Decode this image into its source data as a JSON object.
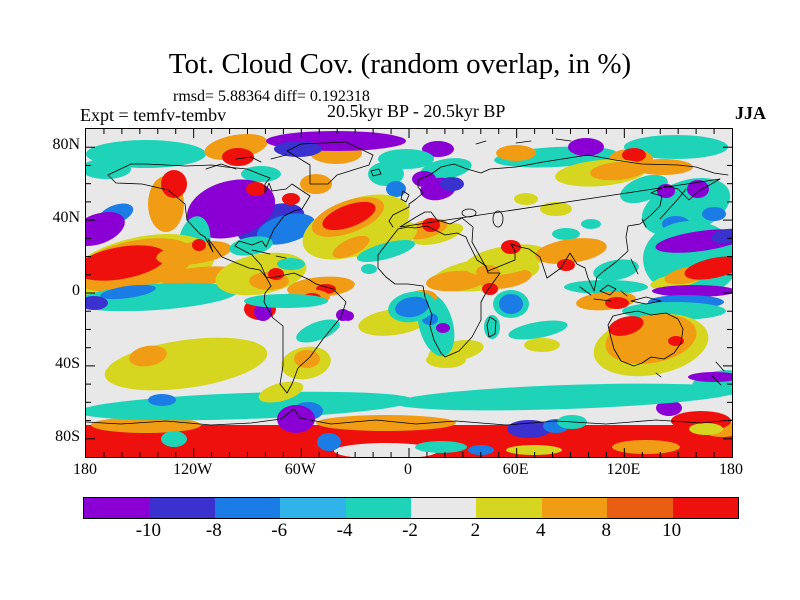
{
  "header": {
    "title": "Tot. Cloud Cov. (random overlap, in %)",
    "stats_line": "rmsd= 5.88364 diff= 0.192318",
    "period_line": "20.5kyr BP - 20.5kyr BP",
    "experiment_label": "Expt = temfv-tembv",
    "season_label": "JJA"
  },
  "chart_data": {
    "type": "heatmap",
    "title": "Tot. Cloud Cov. (random overlap, in %)",
    "subtitle": "rmsd= 5.88364 diff= 0.192318",
    "experiment": "Expt = temfv-tembv",
    "comparison": "20.5kyr BP - 20.5kyr BP",
    "season": "JJA",
    "units": "%",
    "rmsd": 5.88364,
    "diff": 0.192318,
    "projection": "global latitude-longitude map, 180W to 180E, 90S to 90N",
    "x_axis": {
      "tick_labels": [
        "180",
        "120W",
        "60W",
        "0",
        "60E",
        "120E",
        "180"
      ],
      "minor_tick_deg": 10,
      "major_tick_deg": 60
    },
    "y_axis": {
      "tick_labels": [
        "80N",
        "40N",
        "0",
        "40S",
        "80S"
      ],
      "minor_tick_deg": 10,
      "major_tick_deg": 40
    },
    "colorbar": {
      "boundary_labels": [
        "-10",
        "-8",
        "-6",
        "-4",
        "-2",
        "2",
        "4",
        "8",
        "10"
      ],
      "colors": [
        "#8a00d4",
        "#3a31cf",
        "#1b7ce6",
        "#2fb3e8",
        "#1fd3b9",
        "#e8e8e8",
        "#d6d621",
        "#f09c14",
        "#e95e12",
        "#ee100c"
      ],
      "color_meanings": [
        "< -10",
        "-10 to -8",
        "-8 to -6",
        "-6 to -4",
        "-4 to -2",
        "-2 to 2",
        "2 to 4",
        "4 to 8",
        "8 to 10",
        "> 10"
      ],
      "background_color": "#e8e8e8"
    },
    "field_features": [
      [
        "r",
        0,
        296,
        646,
        32,
        0,
        9
      ],
      [
        "e",
        60,
        296,
        55,
        8,
        0,
        7
      ],
      [
        "e",
        300,
        294,
        70,
        8,
        0,
        7
      ],
      [
        "e",
        560,
        318,
        34,
        7,
        0,
        7
      ],
      [
        "e",
        636,
        300,
        20,
        8,
        0,
        7
      ],
      [
        "e",
        615,
        292,
        30,
        10,
        0,
        9
      ],
      [
        "e",
        300,
        322,
        52,
        8,
        0,
        5
      ],
      [
        "e",
        355,
        318,
        26,
        6,
        0,
        4
      ],
      [
        "e",
        395,
        321,
        13,
        5,
        0,
        2
      ],
      [
        "e",
        448,
        321,
        28,
        5,
        0,
        6
      ],
      [
        "e",
        88,
        310,
        13,
        8,
        0,
        4
      ],
      [
        "e",
        243,
        313,
        12,
        9,
        0,
        2
      ],
      [
        "e",
        443,
        300,
        22,
        9,
        0,
        1
      ],
      [
        "e",
        470,
        297,
        13,
        7,
        0,
        2
      ],
      [
        "e",
        486,
        293,
        15,
        7,
        0,
        4
      ],
      [
        "e",
        583,
        279,
        13,
        8,
        0,
        0
      ],
      [
        "e",
        620,
        300,
        17,
        6,
        0,
        6
      ],
      [
        "e",
        160,
        277,
        168,
        13,
        -2,
        4
      ],
      [
        "e",
        480,
        268,
        172,
        12,
        -2,
        4
      ],
      [
        "e",
        76,
        271,
        14,
        6,
        0,
        2
      ],
      [
        "e",
        610,
        263,
        30,
        8,
        -5,
        4
      ],
      [
        "e",
        222,
        282,
        15,
        9,
        0,
        2
      ],
      [
        "e",
        210,
        290,
        19,
        14,
        0,
        0
      ],
      [
        "e",
        632,
        252,
        26,
        10,
        -10,
        4
      ],
      [
        "e",
        628,
        248,
        26,
        5,
        0,
        0
      ],
      [
        "e",
        100,
        235,
        82,
        24,
        -8,
        6
      ],
      [
        "e",
        62,
        227,
        19,
        10,
        -10,
        7
      ],
      [
        "e",
        220,
        234,
        25,
        16,
        -10,
        6
      ],
      [
        "e",
        221,
        230,
        13,
        9,
        0,
        7
      ],
      [
        "e",
        195,
        263,
        23,
        9,
        -15,
        6
      ],
      [
        "e",
        370,
        222,
        28,
        10,
        -10,
        6
      ],
      [
        "e",
        360,
        231,
        20,
        8,
        0,
        6
      ],
      [
        "e",
        308,
        193,
        36,
        13,
        -8,
        6
      ],
      [
        "e",
        350,
        196,
        17,
        32,
        -15,
        4
      ],
      [
        "e",
        344,
        190,
        8,
        6,
        0,
        2
      ],
      [
        "e",
        357,
        199,
        7,
        5,
        0,
        0
      ],
      [
        "e",
        262,
        187,
        6,
        5,
        0,
        0
      ],
      [
        "e",
        406,
        198,
        8,
        12,
        0,
        4
      ],
      [
        "e",
        452,
        201,
        30,
        8,
        -10,
        4
      ],
      [
        "e",
        456,
        216,
        18,
        7,
        0,
        6
      ],
      [
        "e",
        232,
        202,
        23,
        9,
        -20,
        4
      ],
      [
        "e",
        257,
        186,
        7,
        6,
        0,
        0
      ],
      [
        "e",
        235,
        158,
        34,
        10,
        -5,
        7
      ],
      [
        "e",
        240,
        160,
        10,
        5,
        0,
        9
      ],
      [
        "e",
        222,
        168,
        22,
        8,
        0,
        7
      ],
      [
        "e",
        226,
        169,
        9,
        5,
        0,
        9
      ],
      [
        "e",
        174,
        180,
        16,
        11,
        0,
        9
      ],
      [
        "e",
        177,
        183,
        9,
        9,
        0,
        0
      ],
      [
        "e",
        200,
        172,
        42,
        7,
        0,
        4
      ],
      [
        "e",
        337,
        168,
        14,
        7,
        0,
        7
      ],
      [
        "e",
        400,
        145,
        54,
        16,
        -8,
        6
      ],
      [
        "e",
        370,
        152,
        30,
        10,
        -5,
        7
      ],
      [
        "e",
        420,
        150,
        26,
        9,
        -10,
        7
      ],
      [
        "e",
        404,
        160,
        8,
        6,
        0,
        9
      ],
      [
        "e",
        326,
        178,
        24,
        15,
        -10,
        4
      ],
      [
        "e",
        326,
        178,
        17,
        10,
        -10,
        2
      ],
      [
        "e",
        425,
        175,
        18,
        14,
        0,
        4
      ],
      [
        "e",
        425,
        175,
        12,
        10,
        0,
        2
      ],
      [
        "e",
        283,
        140,
        8,
        5,
        0,
        4
      ],
      [
        "e",
        296,
        120,
        7,
        5,
        0,
        0
      ],
      [
        "e",
        352,
        105,
        26,
        9,
        -15,
        6
      ],
      [
        "e",
        340,
        100,
        22,
        9,
        -15,
        7
      ],
      [
        "e",
        345,
        96,
        9,
        7,
        0,
        9
      ],
      [
        "e",
        360,
        40,
        26,
        10,
        -10,
        4
      ],
      [
        "e",
        352,
        60,
        18,
        11,
        -10,
        0
      ],
      [
        "e",
        338,
        50,
        12,
        8,
        0,
        0
      ],
      [
        "e",
        366,
        55,
        12,
        7,
        0,
        1
      ],
      [
        "e",
        470,
        28,
        62,
        10,
        -3,
        4
      ],
      [
        "e",
        590,
        18,
        52,
        12,
        0,
        4
      ],
      [
        "e",
        558,
        60,
        25,
        12,
        -20,
        4
      ],
      [
        "e",
        500,
        18,
        18,
        9,
        0,
        0
      ],
      [
        "e",
        352,
        20,
        16,
        8,
        0,
        0
      ],
      [
        "e",
        430,
        24,
        20,
        8,
        0,
        7
      ],
      [
        "e",
        545,
        30,
        22,
        10,
        0,
        7
      ],
      [
        "e",
        548,
        26,
        12,
        7,
        0,
        9
      ],
      [
        "e",
        515,
        44,
        46,
        13,
        -5,
        6
      ],
      [
        "e",
        532,
        42,
        28,
        9,
        -5,
        7
      ],
      [
        "e",
        577,
        38,
        30,
        8,
        0,
        7
      ],
      [
        "e",
        470,
        80,
        16,
        7,
        0,
        6
      ],
      [
        "e",
        440,
        70,
        12,
        6,
        0,
        6
      ],
      [
        "e",
        480,
        105,
        14,
        6,
        0,
        4
      ],
      [
        "e",
        505,
        95,
        10,
        5,
        0,
        4
      ],
      [
        "e",
        420,
        131,
        42,
        14,
        -10,
        6
      ],
      [
        "e",
        402,
        143,
        12,
        7,
        0,
        7
      ],
      [
        "e",
        485,
        122,
        36,
        12,
        -8,
        7
      ],
      [
        "e",
        425,
        118,
        10,
        7,
        0,
        9
      ],
      [
        "e",
        480,
        136,
        9,
        6,
        0,
        9
      ],
      [
        "e",
        530,
        141,
        23,
        10,
        -10,
        4
      ],
      [
        "e",
        600,
        78,
        46,
        26,
        -20,
        4
      ],
      [
        "e",
        590,
        95,
        14,
        8,
        0,
        2
      ],
      [
        "e",
        628,
        85,
        12,
        7,
        0,
        2
      ],
      [
        "e",
        612,
        60,
        11,
        9,
        0,
        0
      ],
      [
        "e",
        580,
        62,
        9,
        7,
        0,
        0
      ],
      [
        "e",
        605,
        130,
        48,
        38,
        0,
        4
      ],
      [
        "e",
        615,
        112,
        46,
        10,
        -8,
        0
      ],
      [
        "e",
        641,
        107,
        16,
        7,
        -8,
        1
      ],
      [
        "e",
        590,
        152,
        26,
        7,
        -10,
        6
      ],
      [
        "e",
        602,
        146,
        24,
        8,
        -12,
        7
      ],
      [
        "e",
        628,
        139,
        30,
        10,
        -12,
        9
      ],
      [
        "e",
        608,
        162,
        42,
        6,
        0,
        0
      ],
      [
        "e",
        600,
        173,
        38,
        7,
        0,
        2
      ],
      [
        "e",
        588,
        182,
        52,
        9,
        0,
        4
      ],
      [
        "e",
        520,
        158,
        42,
        7,
        0,
        4
      ],
      [
        "e",
        565,
        216,
        58,
        30,
        -10,
        6
      ],
      [
        "e",
        565,
        210,
        46,
        24,
        -10,
        7
      ],
      [
        "e",
        540,
        197,
        18,
        9,
        -15,
        9
      ],
      [
        "e",
        590,
        212,
        8,
        5,
        0,
        9
      ],
      [
        "e",
        520,
        172,
        30,
        9,
        -5,
        7
      ],
      [
        "e",
        531,
        174,
        12,
        6,
        0,
        9
      ],
      [
        "e",
        60,
        25,
        60,
        14,
        0,
        4
      ],
      [
        "e",
        20,
        40,
        25,
        10,
        0,
        4
      ],
      [
        "e",
        320,
        30,
        28,
        10,
        0,
        4
      ],
      [
        "e",
        175,
        45,
        20,
        8,
        0,
        4
      ],
      [
        "e",
        150,
        18,
        32,
        12,
        -10,
        7
      ],
      [
        "e",
        152,
        28,
        16,
        9,
        0,
        9
      ],
      [
        "e",
        250,
        24,
        26,
        11,
        0,
        7
      ],
      [
        "e",
        250,
        12,
        70,
        10,
        0,
        0
      ],
      [
        "e",
        212,
        20,
        24,
        8,
        0,
        1
      ],
      [
        "e",
        230,
        55,
        16,
        10,
        0,
        7
      ],
      [
        "e",
        80,
        75,
        18,
        28,
        0,
        7
      ],
      [
        "e",
        88,
        55,
        13,
        14,
        0,
        9
      ],
      [
        "e",
        185,
        95,
        35,
        18,
        -20,
        1
      ],
      [
        "e",
        200,
        100,
        30,
        14,
        -15,
        2
      ],
      [
        "e",
        145,
        80,
        45,
        28,
        -15,
        0
      ],
      [
        "e",
        170,
        60,
        10,
        7,
        0,
        9
      ],
      [
        "e",
        205,
        70,
        9,
        6,
        0,
        9
      ],
      [
        "e",
        300,
        45,
        18,
        12,
        0,
        4
      ],
      [
        "e",
        310,
        60,
        10,
        8,
        0,
        2
      ],
      [
        "e",
        270,
        98,
        56,
        28,
        -20,
        6
      ],
      [
        "e",
        300,
        112,
        34,
        14,
        -25,
        6
      ],
      [
        "e",
        262,
        88,
        38,
        16,
        -20,
        7
      ],
      [
        "e",
        263,
        87,
        28,
        11,
        -20,
        9
      ],
      [
        "e",
        300,
        122,
        30,
        8,
        -15,
        4
      ],
      [
        "e",
        265,
        118,
        20,
        8,
        -25,
        7
      ],
      [
        "e",
        108,
        115,
        16,
        28,
        10,
        4
      ],
      [
        "e",
        30,
        85,
        18,
        9,
        -20,
        2
      ],
      [
        "e",
        12,
        100,
        28,
        15,
        -20,
        0
      ],
      [
        "e",
        55,
        140,
        75,
        32,
        -12,
        6
      ],
      [
        "e",
        48,
        136,
        62,
        24,
        -12,
        7
      ],
      [
        "e",
        35,
        134,
        46,
        16,
        -10,
        9
      ],
      [
        "e",
        108,
        124,
        38,
        11,
        -8,
        7
      ],
      [
        "e",
        115,
        147,
        42,
        9,
        -5,
        7
      ],
      [
        "e",
        113,
        116,
        7,
        6,
        0,
        9
      ],
      [
        "e",
        70,
        168,
        82,
        13,
        -4,
        4
      ],
      [
        "e",
        42,
        163,
        28,
        6,
        -8,
        2
      ],
      [
        "e",
        8,
        174,
        14,
        7,
        0,
        1
      ],
      [
        "e",
        175,
        145,
        46,
        20,
        -10,
        6
      ],
      [
        "e",
        183,
        152,
        20,
        9,
        0,
        7
      ],
      [
        "e",
        190,
        145,
        8,
        6,
        0,
        9
      ],
      [
        "e",
        165,
        117,
        22,
        9,
        -10,
        4
      ],
      [
        "e",
        205,
        135,
        14,
        6,
        0,
        4
      ]
    ]
  }
}
